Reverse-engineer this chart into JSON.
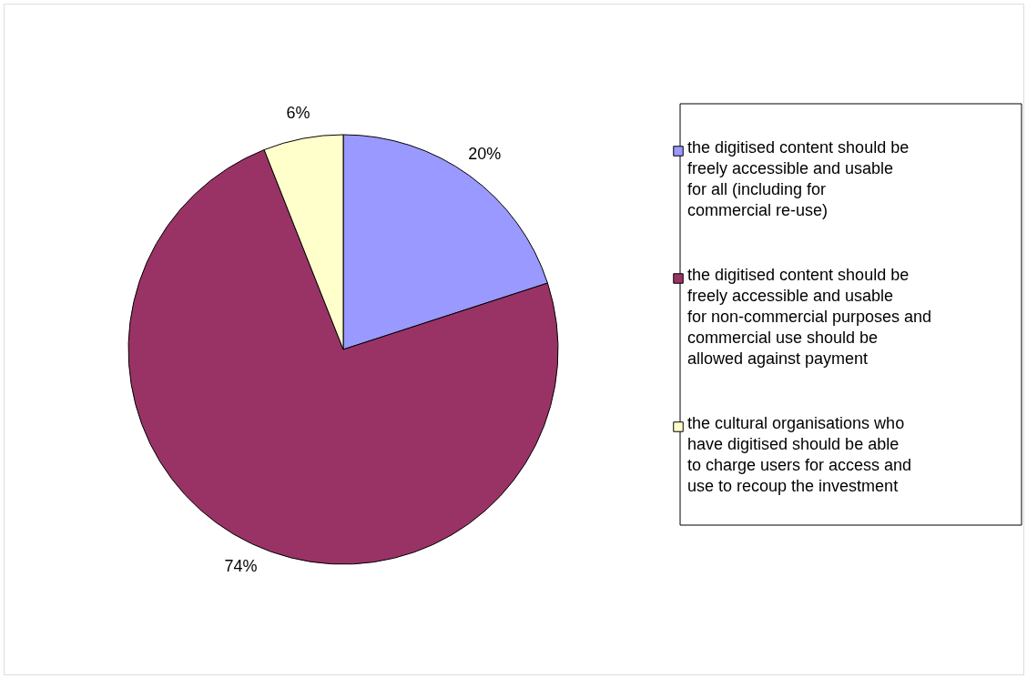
{
  "chart_data": {
    "type": "pie",
    "categories": [
      "the digitised content should be freely accessible and usable for all (including for commercial re-use)",
      "the digitised content should be freely accessible and usable for non-commercial purposes and commercial use should be allowed against payment",
      "the cultural organisations who have digitised should be able to charge users for access and use to recoup the investment"
    ],
    "values": [
      20,
      74,
      6
    ],
    "colors": [
      "#9999ff",
      "#993366",
      "#ffffcc"
    ],
    "value_labels": [
      "20%",
      "74%",
      "6%"
    ],
    "legend": "right"
  }
}
